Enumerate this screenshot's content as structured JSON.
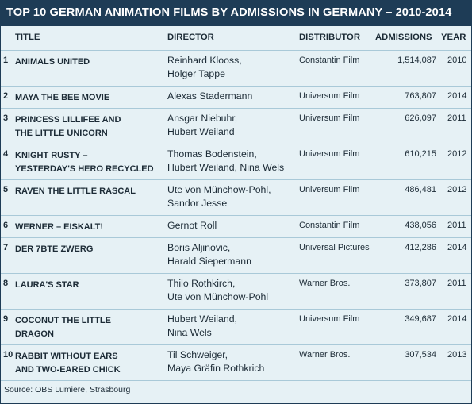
{
  "title": "TOP 10 GERMAN ANIMATION FILMS BY ADMISSIONS IN GERMANY – 2010-2014",
  "headers": {
    "title": "TITLE",
    "director": "DIRECTOR",
    "distributor": "DISTRIBUTOR",
    "admissions": "ADMISSIONS",
    "year": "YEAR"
  },
  "rows": [
    {
      "rank": "1",
      "title": [
        "ANIMALS UNITED"
      ],
      "director": [
        "Reinhard Klooss,",
        "Holger Tappe"
      ],
      "distributor": "Constantin Film",
      "admissions": "1,514,087",
      "year": "2010"
    },
    {
      "rank": "2",
      "title": [
        "MAYA THE BEE MOVIE"
      ],
      "director": [
        "Alexas Stadermann"
      ],
      "distributor": "Universum Film",
      "admissions": "763,807",
      "year": "2014"
    },
    {
      "rank": "3",
      "title": [
        "PRINCESS LILLIFEE AND",
        "THE LITTLE UNICORN"
      ],
      "director": [
        "Ansgar Niebuhr,",
        "Hubert Weiland"
      ],
      "distributor": "Universum Film",
      "admissions": "626,097",
      "year": "2011"
    },
    {
      "rank": "4",
      "title": [
        "KNIGHT RUSTY –",
        "YESTERDAY'S HERO RECYCLED"
      ],
      "director": [
        "Thomas Bodenstein,",
        "Hubert Weiland, Nina Wels"
      ],
      "distributor": "Universum Film",
      "admissions": "610,215",
      "year": "2012"
    },
    {
      "rank": "5",
      "title": [
        "RAVEN THE LITTLE RASCAL"
      ],
      "director": [
        "Ute von Münchow-Pohl,",
        "Sandor Jesse"
      ],
      "distributor": "Universum Film",
      "admissions": "486,481",
      "year": "2012"
    },
    {
      "rank": "6",
      "title": [
        "WERNER – EISKALT!"
      ],
      "director": [
        "Gernot Roll"
      ],
      "distributor": "Constantin Film",
      "admissions": "438,056",
      "year": "2011"
    },
    {
      "rank": "7",
      "title": [
        "DER 7BTE ZWERG"
      ],
      "director": [
        "Boris Aljinovic,",
        "Harald Siepermann"
      ],
      "distributor": "Universal Pictures",
      "admissions": "412,286",
      "year": "2014"
    },
    {
      "rank": "8",
      "title": [
        "LAURA'S STAR"
      ],
      "director": [
        "Thilo Rothkirch,",
        "Ute von Münchow-Pohl"
      ],
      "distributor": "Warner Bros.",
      "admissions": "373,807",
      "year": "2011"
    },
    {
      "rank": "9",
      "title": [
        "COCONUT THE LITTLE",
        "DRAGON"
      ],
      "director": [
        "Hubert Weiland,",
        "Nina Wels"
      ],
      "distributor": "Universum Film",
      "admissions": "349,687",
      "year": "2014"
    },
    {
      "rank": "10",
      "title": [
        "RABBIT WITHOUT EARS",
        "AND TWO-EARED CHICK"
      ],
      "director": [
        "Til Schweiger,",
        "Maya Gräfin Rothkrich"
      ],
      "distributor": "Warner Bros.",
      "admissions": "307,534",
      "year": "2013"
    }
  ],
  "source": "Source: OBS Lumiere, Strasbourg",
  "colors": {
    "header_bg": "#1e3c56",
    "body_bg": "#e6f1f5",
    "divider": "#a9c9d8",
    "text": "#1c2b36"
  }
}
